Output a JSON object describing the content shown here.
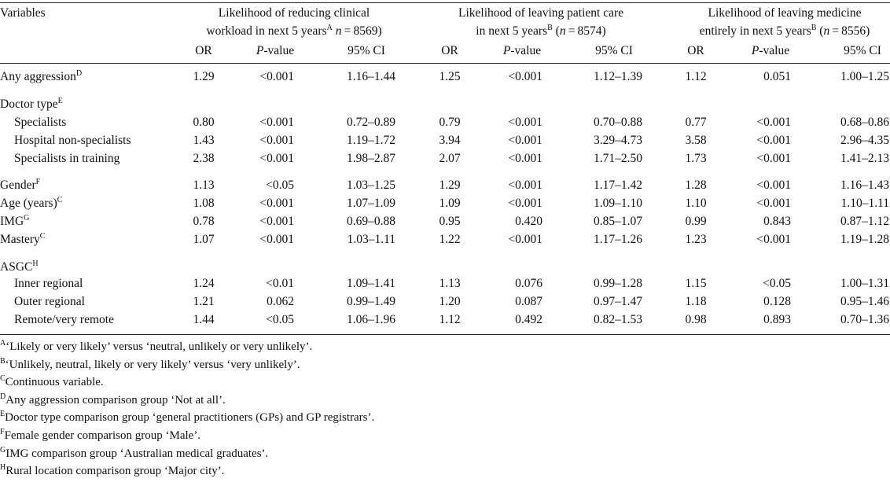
{
  "header": {
    "variables": "Variables",
    "groups": [
      {
        "line1": "Likelihood of reducing clinical",
        "line2": "workload in next 5 years",
        "sup": "A",
        "n": "(n = 8569)"
      },
      {
        "line1": "Likelihood of leaving patient care",
        "line2": "in next 5 years",
        "sup": "B",
        "n": "(n = 8574)"
      },
      {
        "line1": "Likelihood of leaving medicine",
        "line2": "entirely in next 5 years",
        "sup": "B",
        "n": "(n = 8556)"
      }
    ],
    "or": "OR",
    "p": "P-value",
    "ci": "95% CI"
  },
  "rows": [
    {
      "label": "Any aggression",
      "sup": "D",
      "vals": [
        "1.29",
        "<0.001",
        "1.16–1.44",
        "1.25",
        "<0.001",
        "1.12–1.39",
        "1.12",
        "0.051",
        "1.00–1.25"
      ]
    },
    {
      "label": "Doctor type",
      "sup": "E",
      "vals": [
        "",
        "",
        "",
        "",
        "",
        "",
        "",
        "",
        ""
      ]
    },
    {
      "label": "Specialists",
      "sup": "",
      "vals": [
        "0.80",
        "<0.001",
        "0.72–0.89",
        "0.79",
        "<0.001",
        "0.70–0.88",
        "0.77",
        "<0.001",
        "0.68–0.86"
      ]
    },
    {
      "label": "Hospital non-specialists",
      "sup": "",
      "vals": [
        "1.43",
        "<0.001",
        "1.19–1.72",
        "3.94",
        "<0.001",
        "3.29–4.73",
        "3.58",
        "<0.001",
        "2.96–4.35"
      ]
    },
    {
      "label": "Specialists in training",
      "sup": "",
      "vals": [
        "2.38",
        "<0.001",
        "1.98–2.87",
        "2.07",
        "<0.001",
        "1.71–2.50",
        "1.73",
        "<0.001",
        "1.41–2.13"
      ]
    },
    {
      "label": "Gender",
      "sup": "F",
      "vals": [
        "1.13",
        "<0.05",
        "1.03–1.25",
        "1.29",
        "<0.001",
        "1.17–1.42",
        "1.28",
        "<0.001",
        "1.16–1.43"
      ]
    },
    {
      "label": "Age (years)",
      "sup": "C",
      "vals": [
        "1.08",
        "<0.001",
        "1.07–1.09",
        "1.09",
        "<0.001",
        "1.09–1.10",
        "1.10",
        "<0.001",
        "1.10–1.11"
      ]
    },
    {
      "label": "IMG",
      "sup": "G",
      "vals": [
        "0.78",
        "<0.001",
        "0.69–0.88",
        "0.95",
        "0.420",
        "0.85–1.07",
        "0.99",
        "0.843",
        "0.87–1.12"
      ]
    },
    {
      "label": "Mastery",
      "sup": "C",
      "vals": [
        "1.07",
        "<0.001",
        "1.03–1.11",
        "1.22",
        "<0.001",
        "1.17–1.26",
        "1.23",
        "<0.001",
        "1.19–1.28"
      ]
    },
    {
      "label": "ASGC",
      "sup": "H",
      "vals": [
        "",
        "",
        "",
        "",
        "",
        "",
        "",
        "",
        ""
      ]
    },
    {
      "label": "Inner regional",
      "sup": "",
      "vals": [
        "1.24",
        "<0.01",
        "1.09–1.41",
        "1.13",
        "0.076",
        "0.99–1.28",
        "1.15",
        "<0.05",
        "1.00–1.31"
      ]
    },
    {
      "label": "Outer regional",
      "sup": "",
      "vals": [
        "1.21",
        "0.062",
        "0.99–1.49",
        "1.20",
        "0.087",
        "0.97–1.47",
        "1.18",
        "0.128",
        "0.95–1.46"
      ]
    },
    {
      "label": "Remote/very remote",
      "sup": "",
      "vals": [
        "1.44",
        "<0.05",
        "1.06–1.96",
        "1.12",
        "0.492",
        "0.82–1.53",
        "0.98",
        "0.893",
        "0.70–1.36"
      ]
    }
  ],
  "footnotes": [
    {
      "sup": "A",
      "text": "‘Likely or very likely’ versus ‘neutral, unlikely or very unlikely’."
    },
    {
      "sup": "B",
      "text": "‘Unlikely, neutral, likely or very likely’ versus ‘very unlikely’."
    },
    {
      "sup": "C",
      "text": "Continuous variable."
    },
    {
      "sup": "D",
      "text": "Any aggression comparison group ‘Not at all’."
    },
    {
      "sup": "E",
      "text": "Doctor type comparison group ‘general practitioners (GPs) and GP registrars’."
    },
    {
      "sup": "F",
      "text": "Female gender comparison group ‘Male’."
    },
    {
      "sup": "G",
      "text": "IMG comparison group ‘Australian medical graduates’."
    },
    {
      "sup": "H",
      "text": "Rural location comparison group ‘Major city’."
    }
  ]
}
